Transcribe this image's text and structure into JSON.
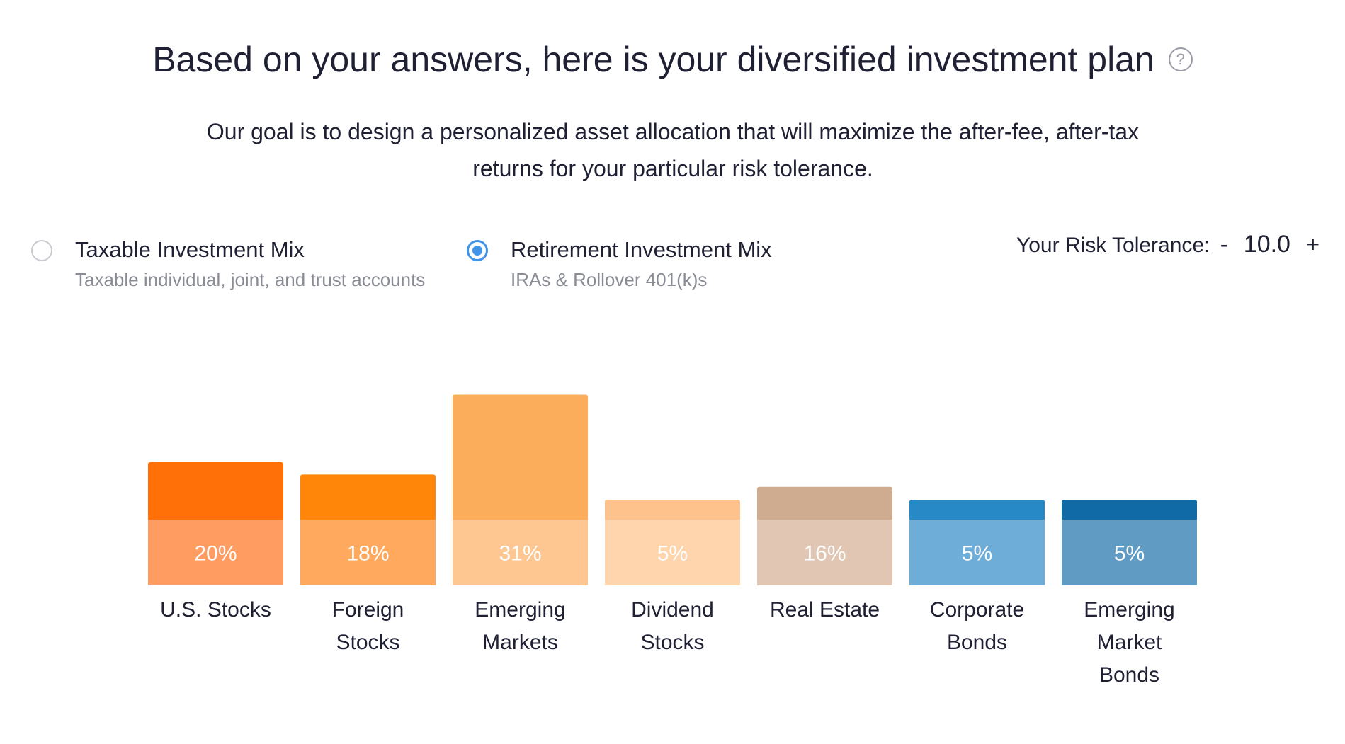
{
  "header": {
    "title": "Based on your answers, here is your diversified investment plan",
    "help_icon": "question-circle-icon",
    "subtitle_line1": "Our goal is to design a personalized asset allocation that will maximize the after-fee, after-tax",
    "subtitle_line2": "returns for your particular risk tolerance."
  },
  "mix_options": [
    {
      "label": "Taxable Investment Mix",
      "sub": "Taxable individual, joint, and trust accounts",
      "selected": false
    },
    {
      "label": "Retirement Investment Mix",
      "sub": "IRAs & Rollover 401(k)s",
      "selected": true
    }
  ],
  "risk": {
    "label": "Your Risk Tolerance:",
    "decrement": "-",
    "value": "10.0",
    "increment": "+"
  },
  "colors": {
    "accent": "#3f94e8",
    "text": "#1f2033",
    "muted": "#8a8c95"
  },
  "chart_data": {
    "type": "bar",
    "categories": [
      [
        "U.S. Stocks"
      ],
      [
        "Foreign",
        "Stocks"
      ],
      [
        "Emerging",
        "Markets"
      ],
      [
        "Dividend",
        "Stocks"
      ],
      [
        "Real Estate"
      ],
      [
        "Corporate",
        "Bonds"
      ],
      [
        "Emerging",
        "Market",
        "Bonds"
      ]
    ],
    "values": [
      20,
      18,
      31,
      5,
      16,
      5,
      5
    ],
    "labels": [
      "20%",
      "18%",
      "31%",
      "5%",
      "16%",
      "5%",
      "5%"
    ],
    "colors": [
      {
        "top": "#ff7008",
        "bottom": "#ff9c62"
      },
      {
        "top": "#ff8608",
        "bottom": "#ffa95e"
      },
      {
        "top": "#fbad5c",
        "bottom": "#fec690"
      },
      {
        "top": "#fec38c",
        "bottom": "#fed5ad"
      },
      {
        "top": "#cfab8f",
        "bottom": "#e1c6b4"
      },
      {
        "top": "#2789c5",
        "bottom": "#6fadd9"
      },
      {
        "top": "#0f6aa6",
        "bottom": "#5f9bc3"
      }
    ],
    "ylim": [
      0,
      31
    ]
  }
}
